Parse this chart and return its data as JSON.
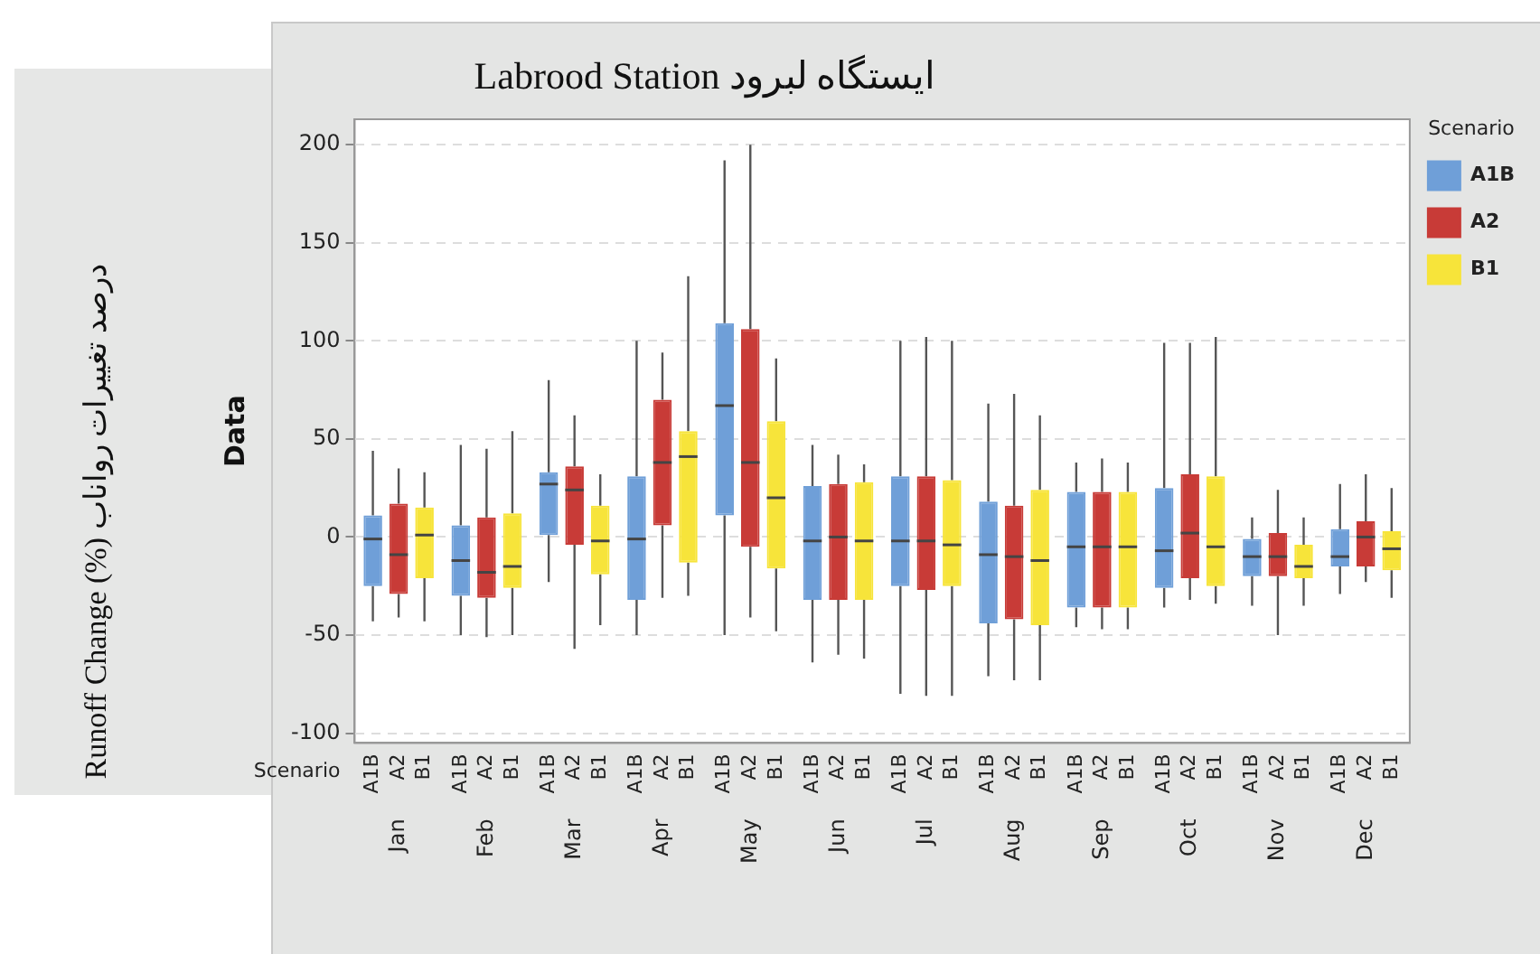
{
  "chart_data": {
    "type": "box",
    "title": "ایستگاه لبرود Labrood Station",
    "ylabel": "Data",
    "legend_title": "Scenario",
    "legend": "right",
    "grid": "y",
    "annotations": [
      "Runoff Change (%) درصد تغییرات رواناب"
    ],
    "categories": [
      "Jan",
      "Feb",
      "Mar",
      "Apr",
      "May",
      "Jun",
      "Jul",
      "Aug",
      "Sep",
      "Oct",
      "Nov",
      "Dec"
    ],
    "ylim": [
      -105,
      213
    ],
    "yticks": [
      -100,
      -50,
      0,
      50,
      100,
      150,
      200
    ],
    "series": [
      {
        "name": "A1B",
        "color": "#6f9fd8",
        "boxes": [
          {
            "low": -43,
            "q1": -25,
            "median": -1,
            "q3": 11,
            "high": 44
          },
          {
            "low": -50,
            "q1": -30,
            "median": -12,
            "q3": 6,
            "high": 47
          },
          {
            "low": -23,
            "q1": 1,
            "median": 27,
            "q3": 33,
            "high": 80
          },
          {
            "low": -50,
            "q1": -32,
            "median": -1,
            "q3": 31,
            "high": 100
          },
          {
            "low": -50,
            "q1": 11,
            "median": 67,
            "q3": 109,
            "high": 192
          },
          {
            "low": -64,
            "q1": -32,
            "median": -2,
            "q3": 26,
            "high": 47
          },
          {
            "low": -80,
            "q1": -25,
            "median": -2,
            "q3": 31,
            "high": 100
          },
          {
            "low": -71,
            "q1": -44,
            "median": -9,
            "q3": 18,
            "high": 68
          },
          {
            "low": -46,
            "q1": -36,
            "median": -5,
            "q3": 23,
            "high": 38
          },
          {
            "low": -36,
            "q1": -26,
            "median": -7,
            "q3": 25,
            "high": 99
          },
          {
            "low": -35,
            "q1": -20,
            "median": -10,
            "q3": -1,
            "high": 10
          },
          {
            "low": -29,
            "q1": -15,
            "median": -10,
            "q3": 4,
            "high": 27
          }
        ]
      },
      {
        "name": "A2",
        "color": "#c83b37",
        "boxes": [
          {
            "low": -41,
            "q1": -29,
            "median": -9,
            "q3": 17,
            "high": 35
          },
          {
            "low": -51,
            "q1": -31,
            "median": -18,
            "q3": 10,
            "high": 45
          },
          {
            "low": -57,
            "q1": -4,
            "median": 24,
            "q3": 36,
            "high": 62
          },
          {
            "low": -31,
            "q1": 6,
            "median": 38,
            "q3": 70,
            "high": 94
          },
          {
            "low": -41,
            "q1": -5,
            "median": 38,
            "q3": 106,
            "high": 200
          },
          {
            "low": -60,
            "q1": -32,
            "median": 0,
            "q3": 27,
            "high": 42
          },
          {
            "low": -81,
            "q1": -27,
            "median": -2,
            "q3": 31,
            "high": 102
          },
          {
            "low": -73,
            "q1": -42,
            "median": -10,
            "q3": 16,
            "high": 73
          },
          {
            "low": -47,
            "q1": -36,
            "median": -5,
            "q3": 23,
            "high": 40
          },
          {
            "low": -32,
            "q1": -21,
            "median": 2,
            "q3": 32,
            "high": 99
          },
          {
            "low": -50,
            "q1": -20,
            "median": -10,
            "q3": 2,
            "high": 24
          },
          {
            "low": -23,
            "q1": -15,
            "median": 0,
            "q3": 8,
            "high": 32
          }
        ]
      },
      {
        "name": "B1",
        "color": "#f7e43a",
        "boxes": [
          {
            "low": -43,
            "q1": -21,
            "median": 1,
            "q3": 15,
            "high": 33
          },
          {
            "low": -50,
            "q1": -26,
            "median": -15,
            "q3": 12,
            "high": 54
          },
          {
            "low": -45,
            "q1": -19,
            "median": -2,
            "q3": 16,
            "high": 32
          },
          {
            "low": -30,
            "q1": -13,
            "median": 41,
            "q3": 54,
            "high": 133
          },
          {
            "low": -48,
            "q1": -16,
            "median": 20,
            "q3": 59,
            "high": 91
          },
          {
            "low": -62,
            "q1": -32,
            "median": -2,
            "q3": 28,
            "high": 37
          },
          {
            "low": -81,
            "q1": -25,
            "median": -4,
            "q3": 29,
            "high": 100
          },
          {
            "low": -73,
            "q1": -45,
            "median": -12,
            "q3": 24,
            "high": 62
          },
          {
            "low": -47,
            "q1": -36,
            "median": -5,
            "q3": 23,
            "high": 38
          },
          {
            "low": -34,
            "q1": -25,
            "median": -5,
            "q3": 31,
            "high": 102
          },
          {
            "low": -35,
            "q1": -21,
            "median": -15,
            "q3": -4,
            "high": 10
          },
          {
            "low": -31,
            "q1": -17,
            "median": -6,
            "q3": 3,
            "high": 25
          }
        ]
      }
    ]
  }
}
